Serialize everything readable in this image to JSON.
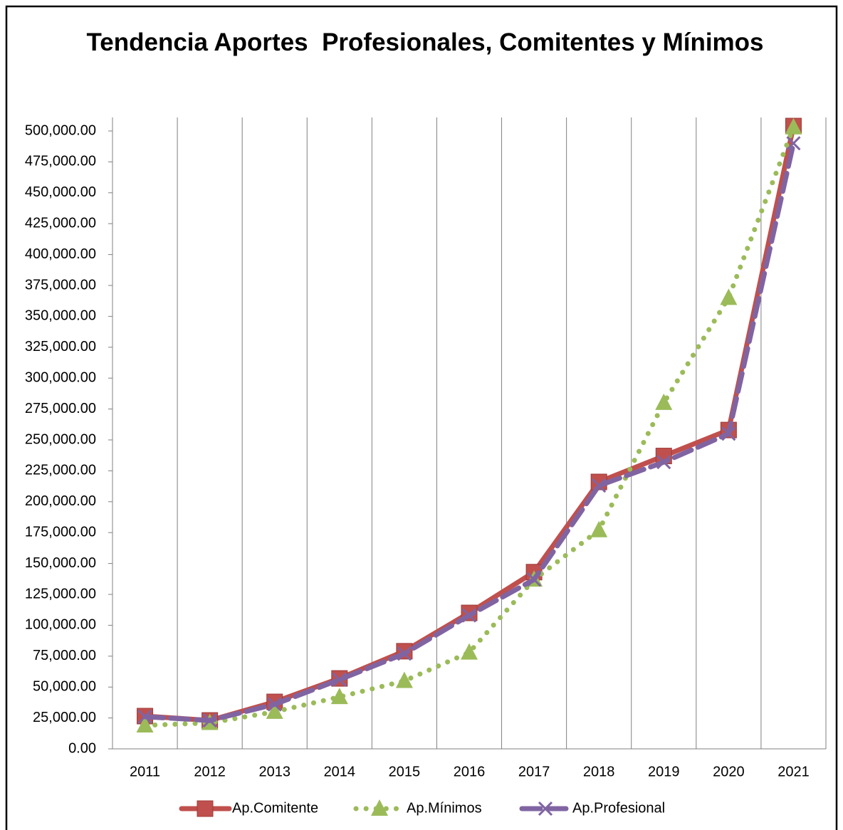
{
  "chart_data": {
    "type": "line",
    "title": "Tendencia Aportes  Profesionales, Comitentes y Mínimos",
    "categories": [
      "2011",
      "2012",
      "2013",
      "2014",
      "2015",
      "2016",
      "2017",
      "2018",
      "2019",
      "2020",
      "2021"
    ],
    "series": [
      {
        "name": "Ap.Comitente",
        "color": "#c0504d",
        "style": "solid",
        "marker": "square",
        "values": [
          26500,
          23000,
          38000,
          57000,
          79000,
          110000,
          143000,
          216000,
          237000,
          258000,
          504000
        ]
      },
      {
        "name": "Ap.Mínimos",
        "color": "#9bbb59",
        "style": "dotted",
        "marker": "triangle",
        "values": [
          19000,
          21000,
          30000,
          42000,
          55000,
          78000,
          137000,
          177000,
          280000,
          365000,
          503000
        ]
      },
      {
        "name": "Ap.Profesional",
        "color": "#8064a2",
        "style": "dashed",
        "marker": "x",
        "values": [
          26000,
          23000,
          36000,
          56000,
          77000,
          108000,
          137000,
          213000,
          232000,
          255000,
          490000
        ]
      }
    ],
    "ylim": [
      0,
      500000
    ],
    "yticks": [
      {
        "value": 0,
        "label": "0.00"
      },
      {
        "value": 25000,
        "label": "25,000.00"
      },
      {
        "value": 50000,
        "label": "50,000.00"
      },
      {
        "value": 75000,
        "label": "75,000.00"
      },
      {
        "value": 100000,
        "label": "100,000.00"
      },
      {
        "value": 125000,
        "label": "125,000.00"
      },
      {
        "value": 150000,
        "label": "150,000.00"
      },
      {
        "value": 175000,
        "label": "175,000.00"
      },
      {
        "value": 200000,
        "label": "200,000.00"
      },
      {
        "value": 225000,
        "label": "225,000.00"
      },
      {
        "value": 250000,
        "label": "250,000.00"
      },
      {
        "value": 275000,
        "label": "275,000.00"
      },
      {
        "value": 300000,
        "label": "300,000.00"
      },
      {
        "value": 325000,
        "label": "325,000.00"
      },
      {
        "value": 350000,
        "label": "350,000.00"
      },
      {
        "value": 375000,
        "label": "375,000.00"
      },
      {
        "value": 400000,
        "label": "400,000.00"
      },
      {
        "value": 425000,
        "label": "425,000.00"
      },
      {
        "value": 450000,
        "label": "450,000.00"
      },
      {
        "value": 475000,
        "label": "475,000.00"
      },
      {
        "value": 500000,
        "label": "500,000.00"
      }
    ],
    "legend": "bottom"
  }
}
